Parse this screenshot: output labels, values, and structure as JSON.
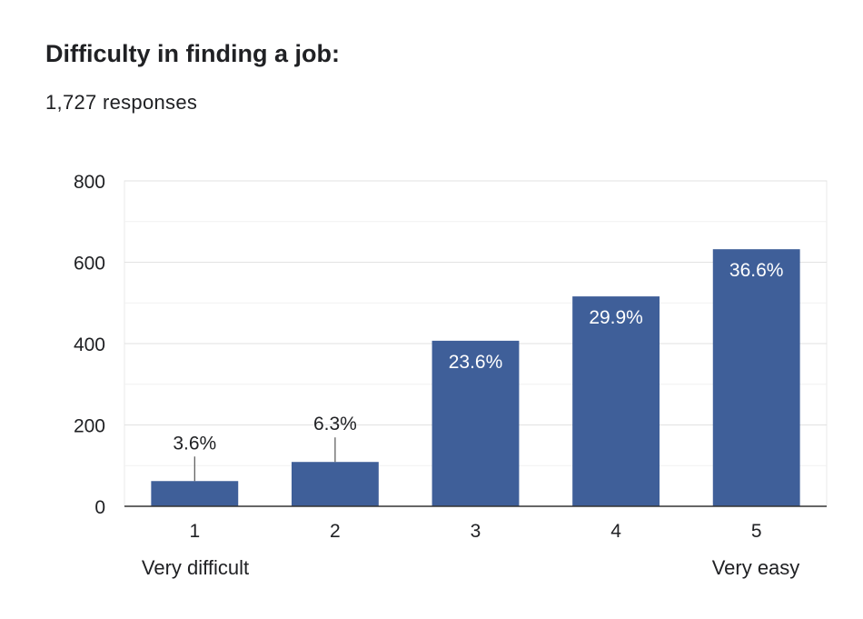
{
  "header": {
    "title": "Difficulty in finding a job:",
    "responses": "1,727 responses"
  },
  "chart_data": {
    "type": "bar",
    "title": "Difficulty in finding a job:",
    "categories": [
      "1",
      "2",
      "3",
      "4",
      "5"
    ],
    "values": [
      62,
      109,
      407,
      516,
      632
    ],
    "data_labels": [
      "3.6%",
      "6.3%",
      "23.6%",
      "29.9%",
      "36.6%"
    ],
    "yticks": [
      0,
      200,
      400,
      600,
      800
    ],
    "ylim": [
      0,
      800
    ],
    "scale_labels": {
      "low": "Very difficult",
      "high": "Very easy"
    },
    "xlabel": "",
    "ylabel": "",
    "grid": true,
    "legend": "none",
    "bar_color": "#3f5f99"
  }
}
